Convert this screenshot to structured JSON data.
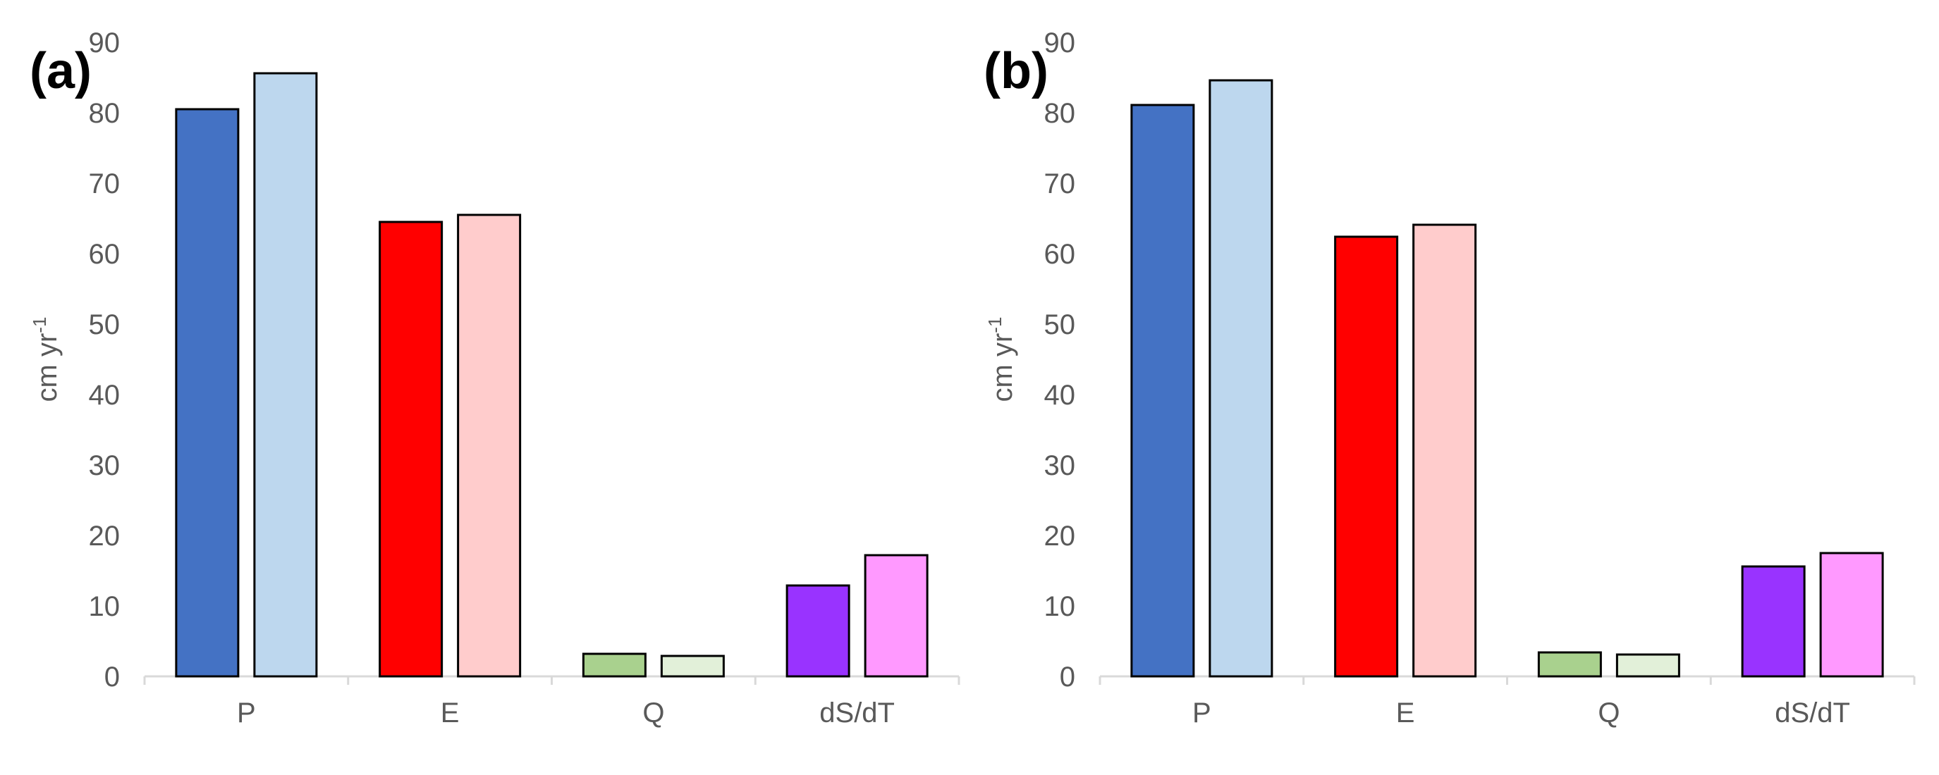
{
  "chart_data": [
    {
      "type": "bar",
      "panel_label": "(a)",
      "categories": [
        "P",
        "E",
        "Q",
        "dS/dT"
      ],
      "ylabel": "cm yr",
      "ylabel_sup": "-1",
      "ylim": [
        0,
        90
      ],
      "yticks": [
        0,
        10,
        20,
        30,
        40,
        50,
        60,
        70,
        80,
        90
      ],
      "grid": false,
      "legend": "none",
      "series": [
        {
          "values": [
            80.5,
            85.6,
            null,
            null
          ],
          "color_by_category": [
            "#4472c4",
            "#bdd7ee",
            "#ff0000",
            "#ffcccc",
            "#a9d18e",
            "#e2f0d9",
            "#9933ff",
            "#ff99ff"
          ]
        },
        {
          "values": [
            null,
            null,
            null,
            null
          ]
        }
      ],
      "bars": [
        {
          "category": "P",
          "value": 80.5,
          "color": "#4472c4"
        },
        {
          "category": "P",
          "value": 85.6,
          "color": "#bdd7ee"
        },
        {
          "category": "E",
          "value": 64.5,
          "color": "#ff0000"
        },
        {
          "category": "E",
          "value": 65.5,
          "color": "#ffcccc"
        },
        {
          "category": "Q",
          "value": 3.2,
          "color": "#a9d18e"
        },
        {
          "category": "Q",
          "value": 2.9,
          "color": "#e2f0d9"
        },
        {
          "category": "dS/dT",
          "value": 12.9,
          "color": "#9933ff"
        },
        {
          "category": "dS/dT",
          "value": 17.2,
          "color": "#ff99ff"
        }
      ]
    },
    {
      "type": "bar",
      "panel_label": "(b)",
      "categories": [
        "P",
        "E",
        "Q",
        "dS/dT"
      ],
      "ylabel": "cm yr",
      "ylabel_sup": "-1",
      "ylim": [
        0,
        90
      ],
      "yticks": [
        0,
        10,
        20,
        30,
        40,
        50,
        60,
        70,
        80,
        90
      ],
      "grid": false,
      "legend": "none",
      "bars": [
        {
          "category": "P",
          "value": 81.1,
          "color": "#4472c4"
        },
        {
          "category": "P",
          "value": 84.6,
          "color": "#bdd7ee"
        },
        {
          "category": "E",
          "value": 62.4,
          "color": "#ff0000"
        },
        {
          "category": "E",
          "value": 64.1,
          "color": "#ffcccc"
        },
        {
          "category": "Q",
          "value": 3.4,
          "color": "#a9d18e"
        },
        {
          "category": "Q",
          "value": 3.1,
          "color": "#e2f0d9"
        },
        {
          "category": "dS/dT",
          "value": 15.6,
          "color": "#9933ff"
        },
        {
          "category": "dS/dT",
          "value": 17.5,
          "color": "#ff99ff"
        }
      ]
    }
  ]
}
